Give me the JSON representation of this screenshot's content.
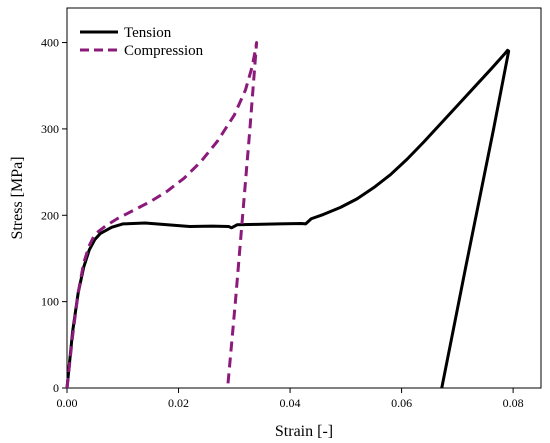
{
  "chart_data": {
    "type": "line",
    "xlabel": "Strain [-]",
    "ylabel": "Stress [MPa]",
    "xlim": [
      0,
      0.085
    ],
    "ylim": [
      0,
      440
    ],
    "x_ticks": [
      0.0,
      0.02,
      0.04,
      0.06,
      0.08
    ],
    "x_tick_labels": [
      "0.00",
      "0.02",
      "0.04",
      "0.06",
      "0.08"
    ],
    "y_ticks": [
      0,
      100,
      200,
      300,
      400
    ],
    "y_tick_labels": [
      "0",
      "100",
      "200",
      "300",
      "400"
    ],
    "grid": false,
    "legend_position": "top-left",
    "series": [
      {
        "name": "Tension",
        "color": "#000000",
        "line_style": "solid",
        "points": [
          [
            0.0,
            0
          ],
          [
            0.001,
            65
          ],
          [
            0.002,
            110
          ],
          [
            0.003,
            140
          ],
          [
            0.004,
            160
          ],
          [
            0.005,
            172
          ],
          [
            0.006,
            179
          ],
          [
            0.008,
            186
          ],
          [
            0.01,
            190
          ],
          [
            0.014,
            191
          ],
          [
            0.018,
            189
          ],
          [
            0.022,
            187
          ],
          [
            0.026,
            187.5
          ],
          [
            0.029,
            187
          ],
          [
            0.0295,
            185.5
          ],
          [
            0.0305,
            189
          ],
          [
            0.034,
            189.5
          ],
          [
            0.038,
            190
          ],
          [
            0.042,
            190.5
          ],
          [
            0.0428,
            190
          ],
          [
            0.0438,
            196
          ],
          [
            0.046,
            201
          ],
          [
            0.049,
            209
          ],
          [
            0.052,
            219
          ],
          [
            0.055,
            232
          ],
          [
            0.058,
            247
          ],
          [
            0.061,
            265
          ],
          [
            0.064,
            285
          ],
          [
            0.067,
            306
          ],
          [
            0.07,
            327
          ],
          [
            0.073,
            348
          ],
          [
            0.076,
            369
          ],
          [
            0.0785,
            387
          ],
          [
            0.079,
            391
          ],
          [
            0.0792,
            390
          ],
          [
            0.0765,
            300
          ],
          [
            0.074,
            220
          ],
          [
            0.0715,
            140
          ],
          [
            0.0692,
            65
          ],
          [
            0.0672,
            0
          ]
        ]
      },
      {
        "name": "Compression",
        "color": "#8b1a7a",
        "line_style": "dashed",
        "points": [
          [
            0.0,
            0
          ],
          [
            0.001,
            60
          ],
          [
            0.002,
            110
          ],
          [
            0.003,
            145
          ],
          [
            0.004,
            165
          ],
          [
            0.005,
            178
          ],
          [
            0.007,
            188
          ],
          [
            0.009,
            196
          ],
          [
            0.012,
            206
          ],
          [
            0.015,
            216
          ],
          [
            0.018,
            228
          ],
          [
            0.021,
            243
          ],
          [
            0.024,
            262
          ],
          [
            0.027,
            286
          ],
          [
            0.03,
            316
          ],
          [
            0.032,
            345
          ],
          [
            0.0332,
            372
          ],
          [
            0.0338,
            392
          ],
          [
            0.034,
            400
          ],
          [
            0.0328,
            300
          ],
          [
            0.0315,
            200
          ],
          [
            0.0302,
            100
          ],
          [
            0.0288,
            0
          ]
        ]
      }
    ]
  }
}
